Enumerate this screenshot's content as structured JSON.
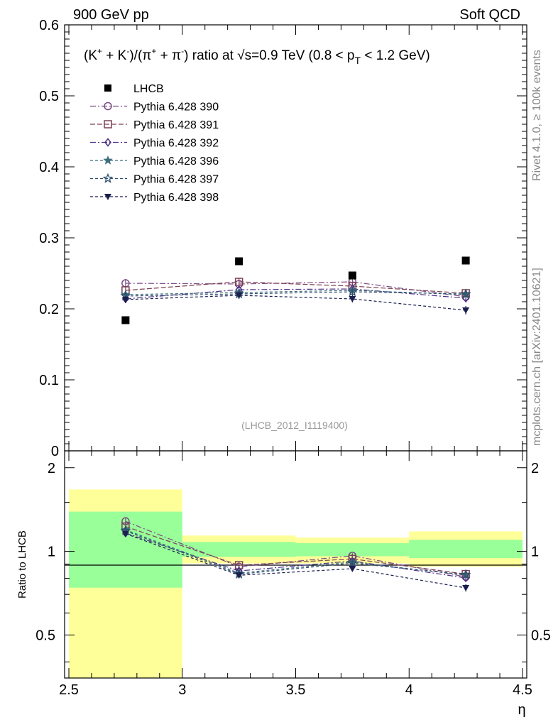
{
  "header": {
    "left": "900 GeV pp",
    "right": "Soft QCD"
  },
  "side_labels": {
    "rivet": "Rivet 4.1.0, ≥ 100k events",
    "mcplots": "mcplots.cern.ch [arXiv:2401.10621]"
  },
  "colors": {
    "data": "#000000",
    "p390": "#7b4b86",
    "p391": "#7b4152",
    "p392": "#4b2f86",
    "p396": "#3f6e7e",
    "p397": "#2f4f6e",
    "p398": "#1a1f4e",
    "band_outer": "#ffff99",
    "band_inner": "#99ff99"
  },
  "chart_data": {
    "type": "scatter",
    "title": "(K⁺ + K⁻)/(π⁺ + π⁻) ratio at √s=0.9 TeV (0.8 < p_T < 1.2 GeV)",
    "title_parts": {
      "lhs": "(K",
      "sup1": "+",
      "op1": " + K",
      "sup2": "-",
      "mid": ")/(π",
      "sup3": "+",
      "op2": " + π",
      "sup4": "-",
      "rhs": ") ratio at √s=0.9 TeV (0.8 < p",
      "sub": "T",
      "tail": " < 1.2 GeV)"
    },
    "analysis_id": "(LHCB_2012_I1119400)",
    "xlabel": "η",
    "ylabel_ratio": "Ratio to LHCB",
    "xlim": [
      2.5,
      4.5
    ],
    "ylim_main": [
      0,
      0.6
    ],
    "ylim_ratio": [
      0.35,
      2.3
    ],
    "x_ticks": [
      "2.5",
      "3",
      "3.5",
      "4",
      "4.5"
    ],
    "y_ticks_main": [
      "0",
      "0.1",
      "0.2",
      "0.3",
      "0.4",
      "0.5",
      "0.6"
    ],
    "y_ticks_ratio": [
      "0.5",
      "1",
      "2"
    ],
    "x_edges": [
      2.5,
      3.0,
      3.5,
      4.0,
      4.5
    ],
    "x": [
      2.75,
      3.25,
      3.75,
      4.25
    ],
    "data": {
      "name": "LHCB",
      "values": [
        0.184,
        0.267,
        0.247,
        0.268
      ]
    },
    "ratio_bands": {
      "outer": [
        [
          0.35,
          1.67
        ],
        [
          0.905,
          1.14
        ],
        [
          0.905,
          1.12
        ],
        [
          0.88,
          1.18
        ]
      ],
      "inner": [
        [
          0.74,
          1.39
        ],
        [
          0.955,
          1.08
        ],
        [
          0.96,
          1.07
        ],
        [
          0.945,
          1.1
        ]
      ]
    },
    "series": [
      {
        "name": "Pythia 6.428 390",
        "marker": "circle",
        "dash": "8,3,2,3",
        "values": [
          0.236,
          0.235,
          0.238,
          0.217
        ],
        "err": [
          0.006,
          0.005,
          0.005,
          0.005
        ]
      },
      {
        "name": "Pythia 6.428 391",
        "marker": "square",
        "dash": "7,3",
        "values": [
          0.226,
          0.238,
          0.232,
          0.222
        ],
        "err": [
          0.006,
          0.006,
          0.005,
          0.006
        ]
      },
      {
        "name": "Pythia 6.428 392",
        "marker": "diamond",
        "dash": "8,3,2,3",
        "values": [
          0.214,
          0.227,
          0.228,
          0.215
        ],
        "err": [
          0.005,
          0.005,
          0.005,
          0.005
        ]
      },
      {
        "name": "Pythia 6.428 396",
        "marker": "star",
        "dash": "4,3",
        "values": [
          0.22,
          0.223,
          0.226,
          0.22
        ],
        "err": [
          0.006,
          0.005,
          0.005,
          0.005
        ]
      },
      {
        "name": "Pythia 6.428 397",
        "marker": "star-open",
        "dash": "4,3",
        "values": [
          0.218,
          0.221,
          0.224,
          0.221
        ],
        "err": [
          0.006,
          0.005,
          0.005,
          0.005
        ]
      },
      {
        "name": "Pythia 6.428 398",
        "marker": "triangle-down",
        "dash": "4,3",
        "values": [
          0.213,
          0.219,
          0.214,
          0.198
        ],
        "err": [
          0.005,
          0.005,
          0.005,
          0.006
        ]
      }
    ],
    "legend_position": "top-left"
  }
}
